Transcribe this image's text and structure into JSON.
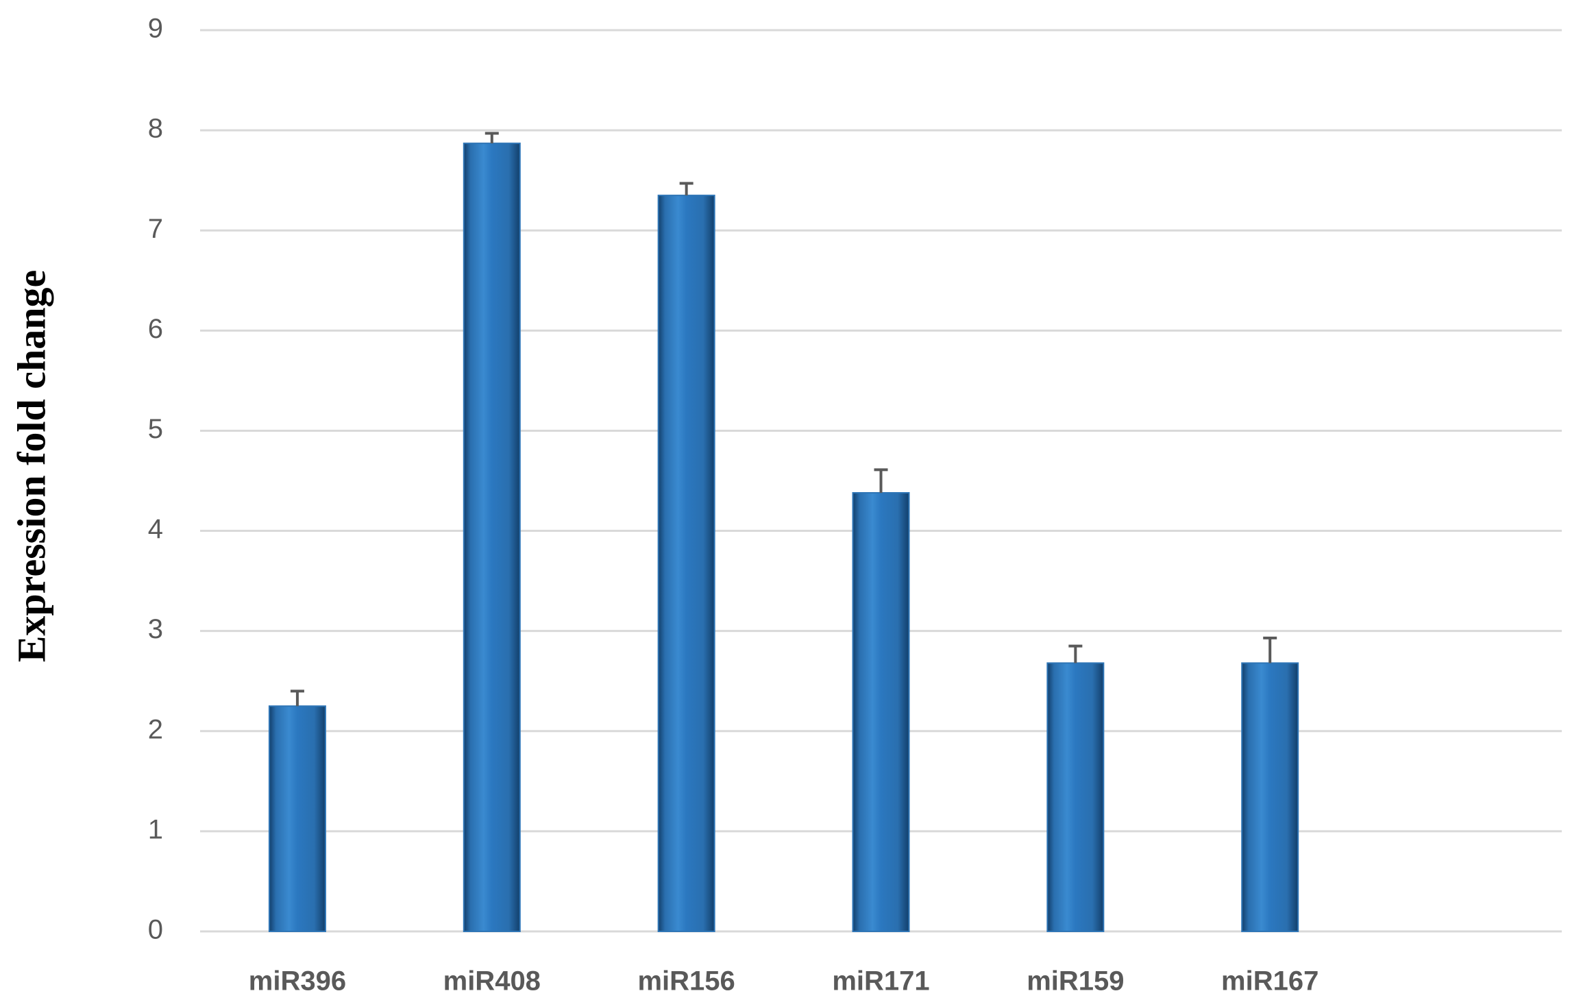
{
  "chart_data": {
    "type": "bar",
    "y_label": "Expression fold change",
    "categories": [
      "miR396",
      "miR408",
      "miR156",
      "miR171",
      "miR159",
      "miR167",
      null
    ],
    "values": [
      2.25,
      7.87,
      7.35,
      4.38,
      2.68,
      2.68,
      null
    ],
    "errors": [
      0.15,
      0.1,
      0.12,
      0.23,
      0.17,
      0.25,
      null
    ],
    "color": "#2e75b6",
    "ylim": [
      0,
      9
    ],
    "yticks": [
      0,
      1,
      2,
      3,
      4,
      5,
      6,
      7,
      8,
      9
    ],
    "grid": true
  }
}
